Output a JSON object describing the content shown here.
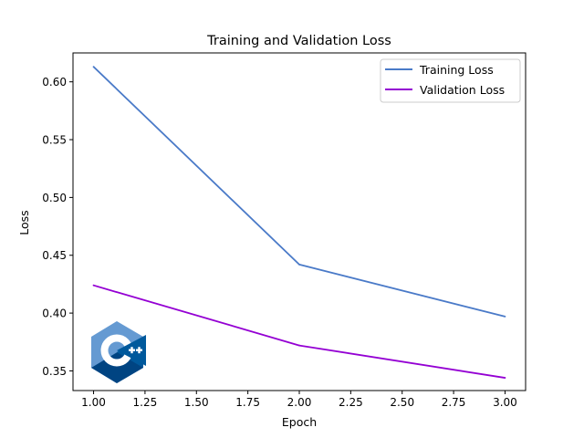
{
  "chart_data": {
    "type": "line",
    "title": "Training and Validation Loss",
    "xlabel": "Epoch",
    "ylabel": "Loss",
    "x": [
      1.0,
      2.0,
      3.0
    ],
    "xlim": [
      0.9,
      3.1
    ],
    "ylim": [
      0.333,
      0.625
    ],
    "xticks": [
      "1.00",
      "1.25",
      "1.50",
      "1.75",
      "2.00",
      "2.25",
      "2.50",
      "2.75",
      "3.00"
    ],
    "yticks": [
      "0.35",
      "0.40",
      "0.45",
      "0.50",
      "0.55",
      "0.60"
    ],
    "grid": false,
    "legend_position": "upper-right",
    "series": [
      {
        "name": "Training Loss",
        "values": [
          0.613,
          0.442,
          0.397
        ],
        "color": "#4a7ac8"
      },
      {
        "name": "Validation Loss",
        "values": [
          0.424,
          0.372,
          0.344
        ],
        "color": "#9400d3"
      }
    ]
  },
  "logo": {
    "icon": "cpp-logo-icon",
    "text": "C++",
    "colors": {
      "light": "#659ad2",
      "mid": "#00599c",
      "dark": "#004482"
    }
  }
}
